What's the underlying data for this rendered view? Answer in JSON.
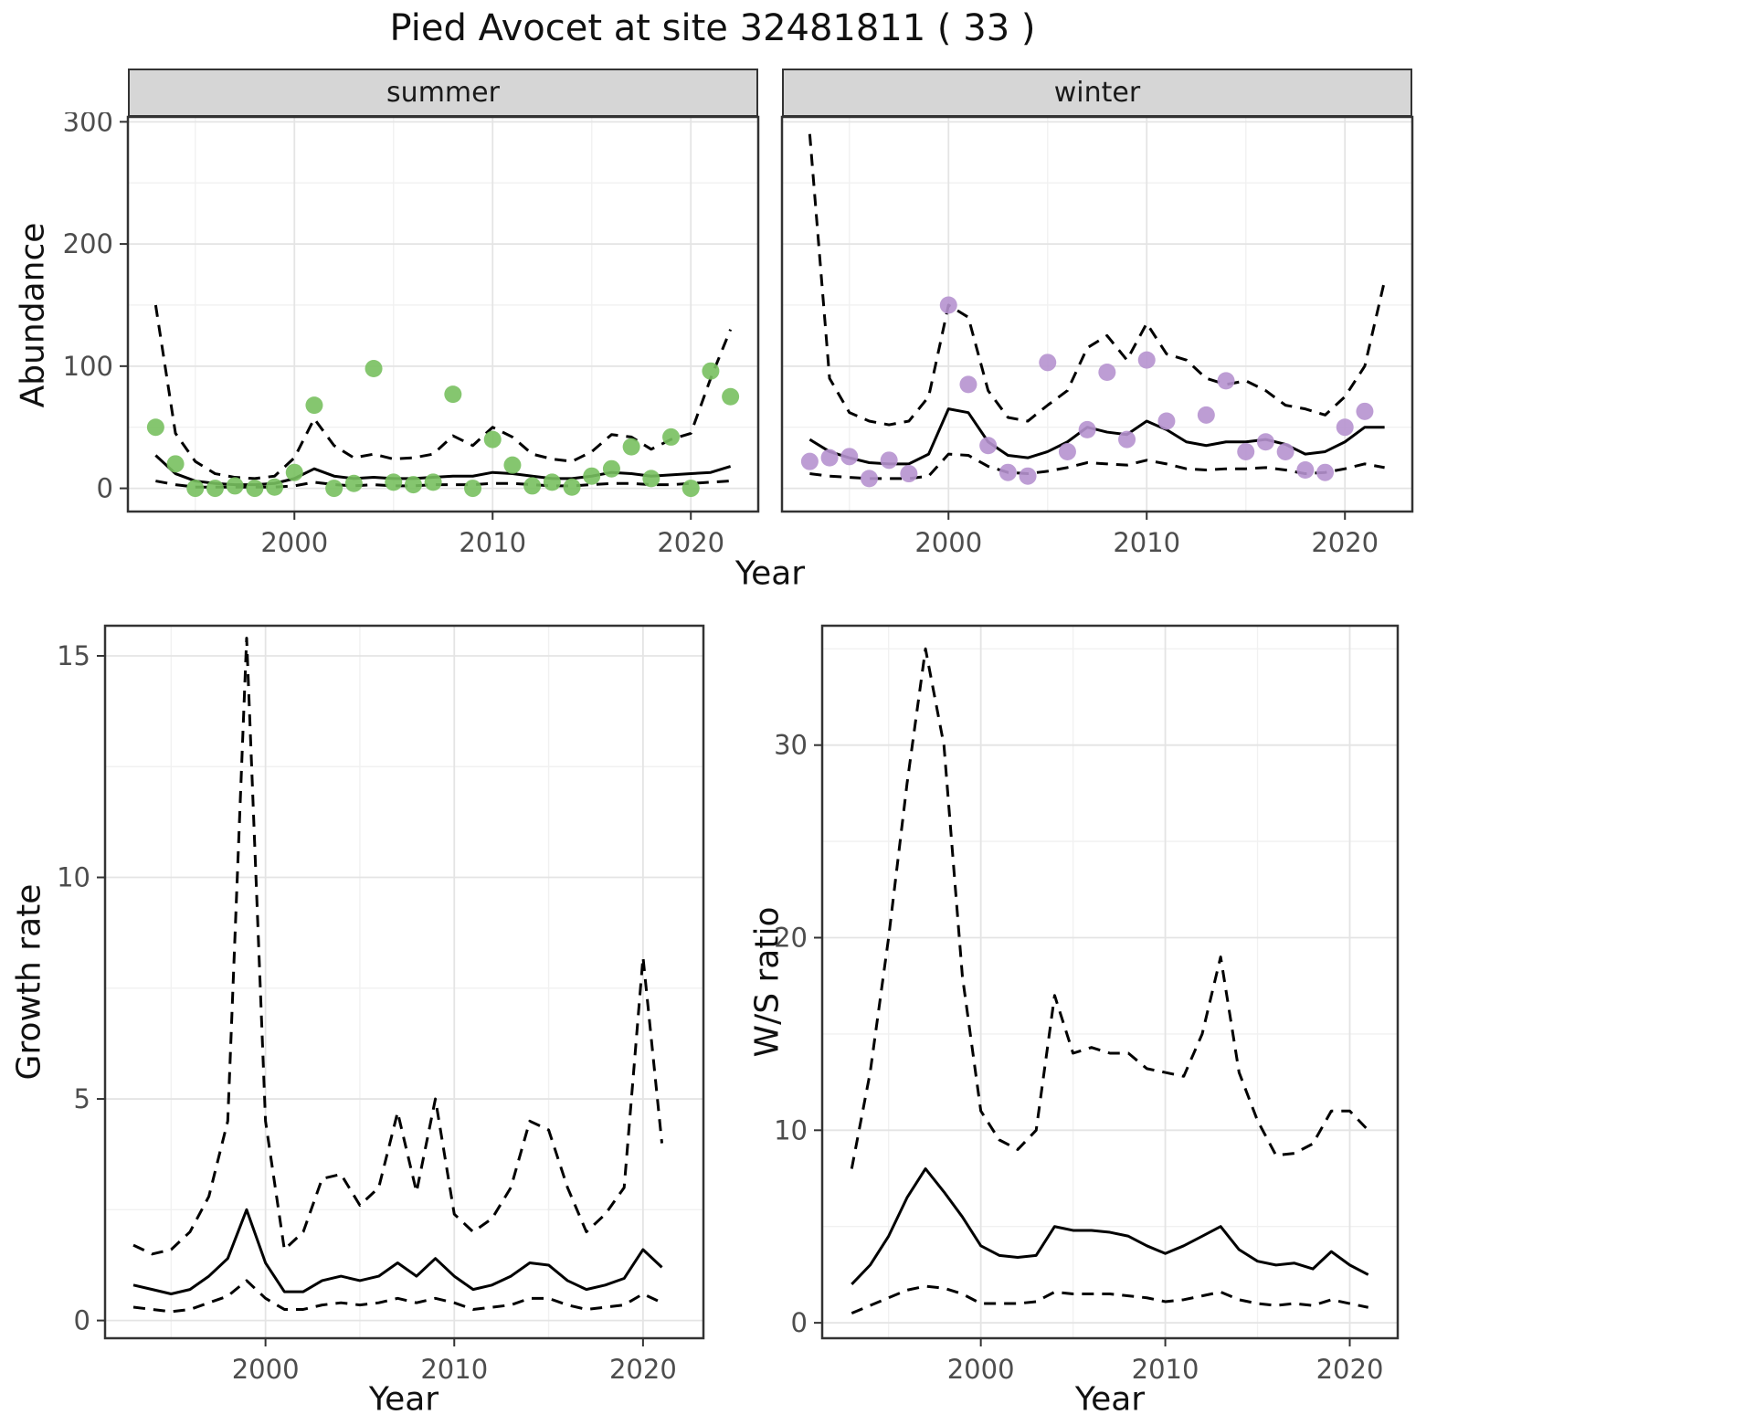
{
  "title": "Pied Avocet at site 32481811 ( 33 )",
  "colors": {
    "summer_point": "#78C05F",
    "winter_point": "#B692CF",
    "line": "#000000",
    "strip_bg": "#D6D6D6",
    "grid_major": "#E4E4E4",
    "panel_border": "#333333"
  },
  "chart_data": [
    {
      "id": "abundance-summer",
      "type": "line",
      "facet_label": "summer",
      "xlabel": "Year",
      "ylabel": "Abundance",
      "xlim": [
        1991.6,
        2023.4
      ],
      "ylim": [
        -19,
        304
      ],
      "xticks": [
        2000,
        2010,
        2020
      ],
      "yticks": [
        0,
        100,
        200,
        300
      ],
      "grid": true,
      "legend": "none",
      "x": [
        1993,
        1994,
        1995,
        1996,
        1997,
        1998,
        1999,
        2000,
        2001,
        2002,
        2003,
        2004,
        2005,
        2006,
        2007,
        2008,
        2009,
        2010,
        2011,
        2012,
        2013,
        2014,
        2015,
        2016,
        2017,
        2018,
        2019,
        2020,
        2021,
        2022
      ],
      "series": [
        {
          "name": "model-fit",
          "style": "solid",
          "color": "#000000",
          "values": [
            27,
            12,
            6,
            4,
            3,
            3,
            4,
            8,
            16,
            10,
            8,
            9,
            8,
            8,
            9,
            10,
            10,
            13,
            12,
            10,
            8,
            8,
            10,
            13,
            12,
            10,
            11,
            12,
            13,
            18
          ]
        },
        {
          "name": "ci-upper",
          "style": "dashed",
          "color": "#000000",
          "values": [
            150,
            45,
            22,
            12,
            9,
            8,
            10,
            25,
            57,
            35,
            25,
            28,
            24,
            25,
            28,
            43,
            35,
            50,
            42,
            28,
            24,
            22,
            30,
            44,
            42,
            32,
            40,
            45,
            90,
            130
          ]
        },
        {
          "name": "ci-lower",
          "style": "dashed",
          "color": "#000000",
          "values": [
            6,
            3,
            1,
            1,
            1,
            1,
            1,
            2,
            5,
            3,
            2,
            3,
            2,
            2,
            3,
            3,
            3,
            4,
            4,
            3,
            2,
            2,
            3,
            4,
            4,
            3,
            3,
            4,
            5,
            6
          ]
        }
      ],
      "points": {
        "name": "observed-counts-summer",
        "color": "#78C05F",
        "x": [
          1993,
          1994,
          1995,
          1996,
          1997,
          1998,
          1999,
          2000,
          2001,
          2002,
          2003,
          2004,
          2005,
          2006,
          2007,
          2008,
          2009,
          2010,
          2011,
          2012,
          2013,
          2014,
          2015,
          2016,
          2017,
          2018,
          2019,
          2020,
          2021,
          2022
        ],
        "y": [
          50,
          20,
          0,
          0,
          2,
          0,
          1,
          13,
          68,
          0,
          4,
          98,
          5,
          3,
          5,
          77,
          0,
          40,
          19,
          2,
          5,
          1,
          10,
          16,
          34,
          8,
          42,
          0,
          96,
          75
        ]
      }
    },
    {
      "id": "abundance-winter",
      "type": "line",
      "facet_label": "winter",
      "xlabel": "Year",
      "ylabel": "Abundance",
      "xlim": [
        1991.6,
        2023.4
      ],
      "ylim": [
        -19,
        304
      ],
      "xticks": [
        2000,
        2010,
        2020
      ],
      "yticks": [
        0,
        100,
        200,
        300
      ],
      "grid": true,
      "legend": "none",
      "x": [
        1993,
        1994,
        1995,
        1996,
        1997,
        1998,
        1999,
        2000,
        2001,
        2002,
        2003,
        2004,
        2005,
        2006,
        2007,
        2008,
        2009,
        2010,
        2011,
        2012,
        2013,
        2014,
        2015,
        2016,
        2017,
        2018,
        2019,
        2020,
        2021,
        2022
      ],
      "series": [
        {
          "name": "model-fit",
          "style": "solid",
          "color": "#000000",
          "values": [
            40,
            30,
            25,
            21,
            20,
            20,
            28,
            65,
            62,
            38,
            27,
            25,
            30,
            38,
            50,
            46,
            44,
            55,
            48,
            38,
            35,
            38,
            38,
            40,
            36,
            28,
            30,
            38,
            50,
            50
          ]
        },
        {
          "name": "ci-upper",
          "style": "dashed",
          "color": "#000000",
          "values": [
            290,
            90,
            62,
            55,
            52,
            55,
            75,
            150,
            140,
            80,
            58,
            55,
            68,
            80,
            115,
            125,
            105,
            135,
            110,
            105,
            90,
            85,
            88,
            80,
            68,
            65,
            60,
            75,
            100,
            170
          ]
        },
        {
          "name": "ci-lower",
          "style": "dashed",
          "color": "#000000",
          "values": [
            12,
            10,
            9,
            8,
            8,
            8,
            10,
            28,
            27,
            18,
            13,
            12,
            14,
            17,
            21,
            20,
            19,
            23,
            20,
            16,
            15,
            16,
            16,
            17,
            15,
            12,
            13,
            16,
            20,
            17
          ]
        }
      ],
      "points": {
        "name": "observed-counts-winter",
        "color": "#B692CF",
        "x": [
          1993,
          1994,
          1995,
          1996,
          1997,
          1998,
          2000,
          2001,
          2002,
          2003,
          2004,
          2005,
          2006,
          2007,
          2008,
          2009,
          2010,
          2011,
          2013,
          2014,
          2015,
          2016,
          2017,
          2018,
          2019,
          2020,
          2021
        ],
        "y": [
          22,
          25,
          26,
          8,
          23,
          12,
          150,
          85,
          35,
          13,
          10,
          103,
          30,
          48,
          95,
          40,
          105,
          55,
          60,
          88,
          30,
          38,
          30,
          15,
          13,
          50,
          63
        ]
      }
    },
    {
      "id": "growth-rate",
      "type": "line",
      "xlabel": "Year",
      "ylabel": "Growth rate",
      "xlim": [
        1991.5,
        2023.2
      ],
      "ylim": [
        -0.4,
        15.68
      ],
      "xticks": [
        2000,
        2010,
        2020
      ],
      "yticks": [
        0,
        5,
        10,
        15
      ],
      "grid": true,
      "legend": "none",
      "x": [
        1993,
        1994,
        1995,
        1996,
        1997,
        1998,
        1999,
        2000,
        2001,
        2002,
        2003,
        2004,
        2005,
        2006,
        2007,
        2008,
        2009,
        2010,
        2011,
        2012,
        2013,
        2014,
        2015,
        2016,
        2017,
        2018,
        2019,
        2020,
        2021
      ],
      "series": [
        {
          "name": "model-fit",
          "style": "solid",
          "color": "#000000",
          "values": [
            0.8,
            0.7,
            0.6,
            0.7,
            1.0,
            1.4,
            2.5,
            1.3,
            0.65,
            0.65,
            0.9,
            1.0,
            0.9,
            1.0,
            1.3,
            1.0,
            1.4,
            1.0,
            0.7,
            0.8,
            1.0,
            1.3,
            1.25,
            0.9,
            0.7,
            0.8,
            0.95,
            1.6,
            1.2
          ]
        },
        {
          "name": "ci-upper",
          "style": "dashed",
          "color": "#000000",
          "values": [
            1.7,
            1.5,
            1.6,
            2.0,
            2.8,
            4.5,
            15.4,
            4.5,
            1.6,
            2.0,
            3.2,
            3.3,
            2.6,
            3.0,
            4.7,
            2.9,
            5.0,
            2.4,
            2.0,
            2.3,
            3.0,
            4.5,
            4.3,
            3.0,
            2.0,
            2.4,
            3.0,
            8.2,
            4.0
          ]
        },
        {
          "name": "ci-lower",
          "style": "dashed",
          "color": "#000000",
          "values": [
            0.3,
            0.25,
            0.2,
            0.25,
            0.4,
            0.55,
            0.9,
            0.5,
            0.25,
            0.25,
            0.35,
            0.4,
            0.35,
            0.4,
            0.5,
            0.4,
            0.5,
            0.4,
            0.25,
            0.3,
            0.35,
            0.5,
            0.5,
            0.35,
            0.25,
            0.3,
            0.35,
            0.6,
            0.4
          ]
        }
      ]
    },
    {
      "id": "ws-ratio",
      "type": "line",
      "xlabel": "Year",
      "ylabel": "W/S ratio",
      "xlim": [
        1991.4,
        2022.6
      ],
      "ylim": [
        -0.8,
        36.2
      ],
      "xticks": [
        2000,
        2010,
        2020
      ],
      "yticks": [
        0,
        10,
        20,
        30
      ],
      "grid": true,
      "legend": "none",
      "x": [
        1993,
        1994,
        1995,
        1996,
        1997,
        1998,
        1999,
        2000,
        2001,
        2002,
        2003,
        2004,
        2005,
        2006,
        2007,
        2008,
        2009,
        2010,
        2011,
        2012,
        2013,
        2014,
        2015,
        2016,
        2017,
        2018,
        2019,
        2020,
        2021
      ],
      "series": [
        {
          "name": "model-fit",
          "style": "solid",
          "color": "#000000",
          "values": [
            2.0,
            3.0,
            4.5,
            6.5,
            8.0,
            6.8,
            5.5,
            4.0,
            3.5,
            3.4,
            3.5,
            5.0,
            4.8,
            4.8,
            4.7,
            4.5,
            4.0,
            3.6,
            4.0,
            4.5,
            5.0,
            3.8,
            3.2,
            3.0,
            3.1,
            2.8,
            3.7,
            3.0,
            2.5
          ]
        },
        {
          "name": "ci-upper",
          "style": "dashed",
          "color": "#000000",
          "values": [
            8,
            13,
            20,
            28,
            35,
            30,
            18,
            11,
            9.5,
            9,
            10,
            17,
            14,
            14.3,
            14,
            14,
            13.2,
            13,
            12.8,
            15,
            19,
            13,
            10.5,
            8.7,
            8.8,
            9.3,
            11,
            11,
            10
          ]
        },
        {
          "name": "ci-lower",
          "style": "dashed",
          "color": "#000000",
          "values": [
            0.5,
            0.9,
            1.3,
            1.7,
            1.9,
            1.8,
            1.5,
            1.0,
            1.0,
            1.0,
            1.1,
            1.6,
            1.5,
            1.5,
            1.5,
            1.4,
            1.3,
            1.1,
            1.2,
            1.4,
            1.6,
            1.2,
            1.0,
            0.9,
            1.0,
            0.9,
            1.2,
            1.0,
            0.8
          ]
        }
      ]
    }
  ]
}
